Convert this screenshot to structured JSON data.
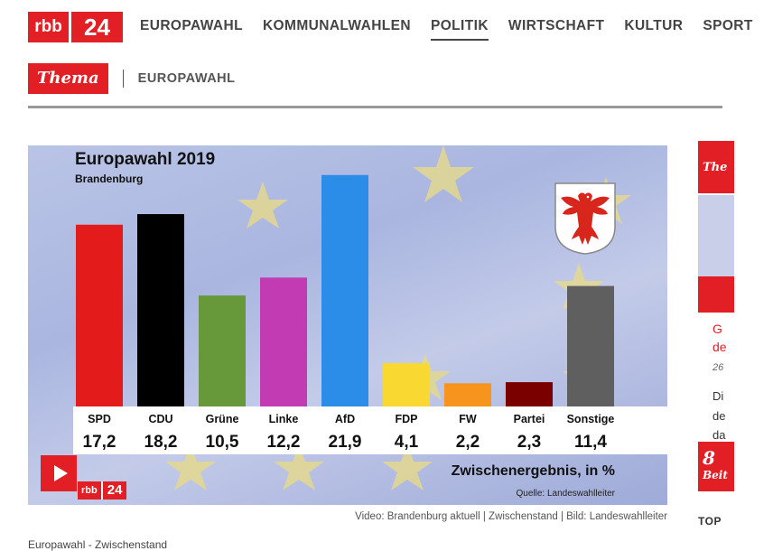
{
  "header": {
    "logo_left": "rbb",
    "logo_right": "24",
    "nav": [
      "EUROPAWAHL",
      "KOMMUNALWAHLEN",
      "POLITIK",
      "WIRTSCHAFT",
      "KULTUR",
      "SPORT"
    ],
    "active_nav": "POLITIK"
  },
  "thema": {
    "badge": "Thema",
    "label": "EUROPAWAHL"
  },
  "video": {
    "logo_left": "rbb",
    "logo_right": "24",
    "caption": "Video: Brandenburg aktuell | Zwischenstand | Bild: Landeswahlleiter",
    "below_text": "Europawahl - Zwischenstand"
  },
  "chart_data": {
    "type": "bar",
    "title": "Europawahl 2019",
    "subtitle": "Brandenburg",
    "categories": [
      "SPD",
      "CDU",
      "Grüne",
      "Linke",
      "AfD",
      "FDP",
      "FW",
      "Partei",
      "Sonstige"
    ],
    "values": [
      17.2,
      18.2,
      10.5,
      12.2,
      21.9,
      4.1,
      2.2,
      2.3,
      11.4
    ],
    "value_labels": [
      "17,2",
      "18,2",
      "10,5",
      "12,2",
      "21,9",
      "4,1",
      "2,2",
      "2,3",
      "11,4"
    ],
    "colors": [
      "#e31b1b",
      "#000000",
      "#67993a",
      "#c23bb2",
      "#2b8de8",
      "#f9d832",
      "#f7941d",
      "#7a0000",
      "#5f5f5f"
    ],
    "note": "Zwischenergebnis, in %",
    "source": "Quelle: Landeswahlleiter"
  },
  "rail": {
    "thema": "The",
    "headline_1": "G",
    "headline_2": "de",
    "date": "26",
    "body_1": "Di",
    "body_2": "de",
    "body_3": "da",
    "badge": "Beit",
    "top_label": "TOP"
  }
}
